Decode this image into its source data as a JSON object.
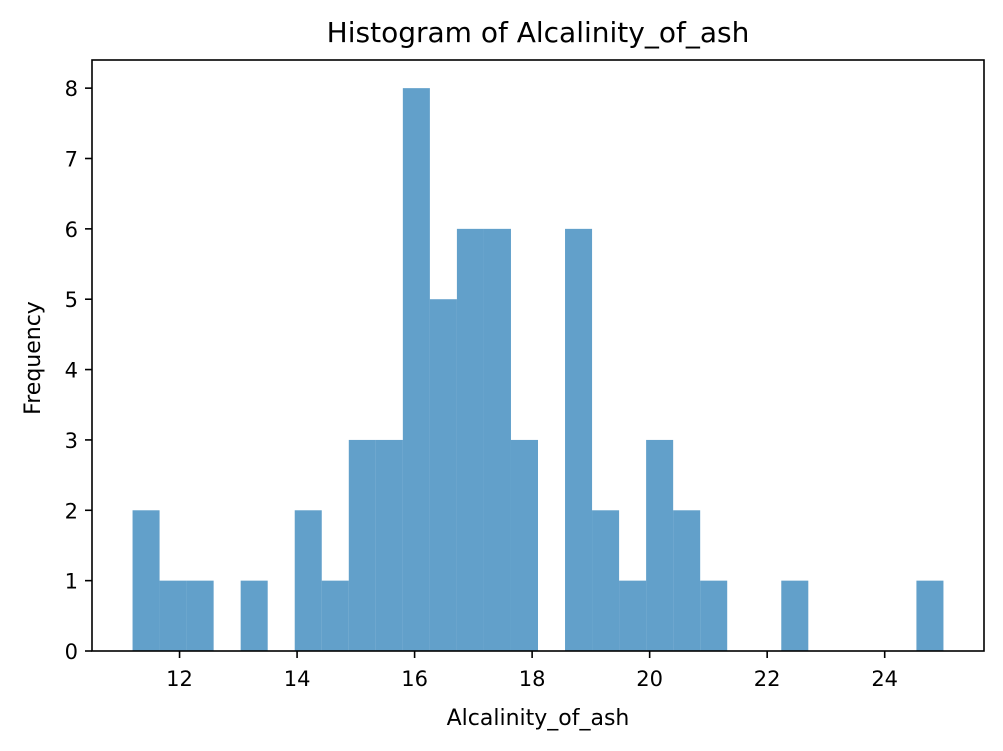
{
  "chart_data": {
    "type": "bar",
    "title": "Histogram of Alcalinity_of_ash",
    "xlabel": "Alcalinity_of_ash",
    "ylabel": "Frequency",
    "xlim": [
      10.51,
      25.69
    ],
    "ylim": [
      0,
      8.4
    ],
    "xticks": [
      12,
      14,
      16,
      18,
      20,
      22,
      24
    ],
    "yticks": [
      0,
      1,
      2,
      3,
      4,
      5,
      6,
      7,
      8
    ],
    "bar_color": "#1f77b4",
    "bar_opacity": 0.7,
    "grid": false,
    "bin_start": 11.2,
    "bin_width": 0.46,
    "counts": [
      2,
      1,
      1,
      0,
      1,
      0,
      2,
      1,
      3,
      3,
      8,
      5,
      6,
      6,
      3,
      0,
      6,
      2,
      1,
      3,
      2,
      1,
      0,
      0,
      1,
      0,
      0,
      0,
      0,
      1
    ]
  }
}
